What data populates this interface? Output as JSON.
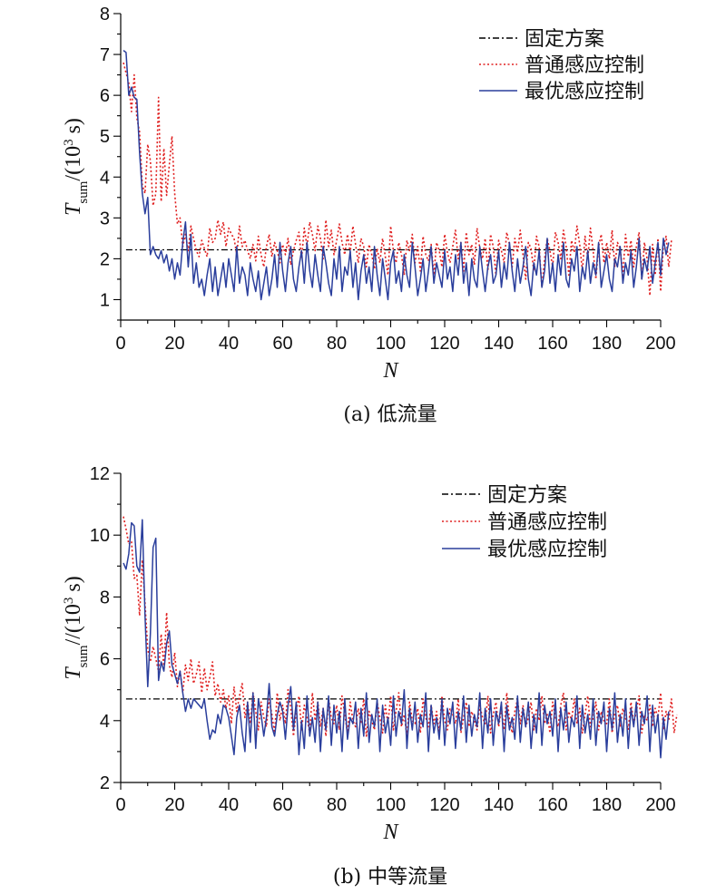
{
  "chart_data": [
    {
      "type": "line",
      "caption": "(a) 低流量",
      "xlabel": "N",
      "ylabel": {
        "main": "T",
        "sub": "sum",
        "rest": "/(10",
        "sup": "3",
        "end": " s)"
      },
      "xlim": [
        0,
        200
      ],
      "ylim": [
        0.5,
        8
      ],
      "xticks": [
        0,
        20,
        40,
        60,
        80,
        100,
        120,
        140,
        160,
        180,
        200
      ],
      "yticks": [
        1,
        2,
        3,
        4,
        5,
        6,
        7,
        8
      ],
      "grid": false,
      "legend_position": "top-right",
      "colors": {
        "fixed": "#000000",
        "normal": "#e02020",
        "optimal": "#2a3e9c"
      },
      "series": [
        {
          "name": "固定方案",
          "style": "dashdot",
          "points": [
            [
              2,
              2.22
            ],
            [
              200,
              2.22
            ]
          ]
        },
        {
          "name": "普通感应控制",
          "style": "dotted",
          "values": [
            6.8,
            6.55,
            6.3,
            5.6,
            6.5,
            5.45,
            5.1,
            3.8,
            3.6,
            4.8,
            4.4,
            3.3,
            3.6,
            5.95,
            3.4,
            4.7,
            3.55,
            4.3,
            5.0,
            3.6,
            2.85,
            3.0,
            2.3,
            2.6,
            2.2,
            2.8,
            2.5,
            2.2,
            2.05,
            2.45,
            2.25,
            2.05,
            2.75,
            2.4,
            2.5,
            2.95,
            2.6,
            2.9,
            2.3,
            2.75,
            2.6,
            2.5,
            2.1,
            2.8,
            2.3,
            2.45,
            2.2,
            2.0,
            2.35,
            1.95,
            2.55,
            2.1,
            1.8,
            2.3,
            2.6,
            2.05,
            2.4,
            2.2,
            1.9,
            2.35,
            2.1,
            2.5,
            1.85,
            2.2,
            2.45,
            2.65,
            2.0,
            2.75,
            2.3,
            2.9,
            2.6,
            2.2,
            2.8,
            2.5,
            2.0,
            2.95,
            2.3,
            2.7,
            2.1,
            2.45,
            2.85,
            2.4,
            2.1,
            2.6,
            2.15,
            2.8,
            2.35,
            1.9,
            2.5,
            2.3,
            1.8,
            2.35,
            2.1,
            1.75,
            2.25,
            1.9,
            2.5,
            2.05,
            1.6,
            2.8,
            2.2,
            1.9,
            2.4,
            2.1,
            1.6,
            2.45,
            2.2,
            2.6,
            1.9,
            2.3,
            1.7,
            2.55,
            2.1,
            1.95,
            2.35,
            1.6,
            2.4,
            2.2,
            1.8,
            2.6,
            2.15,
            1.9,
            2.3,
            2.7,
            2.0,
            2.4,
            1.7,
            2.65,
            2.1,
            2.35,
            1.85,
            2.75,
            2.25,
            2.0,
            2.5,
            1.7,
            2.6,
            2.3,
            1.6,
            2.45,
            2.2,
            1.9,
            2.65,
            2.35,
            1.8,
            2.5,
            2.15,
            2.7,
            2.1,
            1.5,
            2.4,
            2.25,
            1.7,
            2.55,
            2.3,
            1.3,
            2.0,
            2.5,
            2.2,
            1.8,
            2.65,
            2.4,
            2.0,
            2.7,
            2.3,
            1.6,
            2.45,
            2.15,
            2.8,
            2.35,
            1.7,
            2.55,
            2.0,
            2.75,
            2.2,
            1.5,
            2.3,
            2.6,
            1.9,
            2.4,
            2.0,
            2.7,
            1.8,
            2.4,
            2.25,
            1.6,
            2.6,
            2.05,
            2.45,
            1.8,
            2.3,
            2.65,
            1.5,
            2.4,
            2.0,
            1.1,
            2.35,
            1.6,
            2.5,
            1.2,
            2.3,
            2.55,
            1.8,
            2.45
          ]
        },
        {
          "name": "最优感应控制",
          "style": "solid",
          "values": [
            7.1,
            7.05,
            6.0,
            6.2,
            5.95,
            5.9,
            4.6,
            3.6,
            3.1,
            3.5,
            2.1,
            2.3,
            2.1,
            2.0,
            2.2,
            1.9,
            2.1,
            1.7,
            2.0,
            1.5,
            1.9,
            1.6,
            2.4,
            2.9,
            1.8,
            2.6,
            1.4,
            1.9,
            1.3,
            1.5,
            1.1,
            1.6,
            2.0,
            1.2,
            1.8,
            1.1,
            1.5,
            1.9,
            1.3,
            2.0,
            1.6,
            1.2,
            2.3,
            1.4,
            1.8,
            1.6,
            1.1,
            1.9,
            1.5,
            1.2,
            1.7,
            1.0,
            1.4,
            1.8,
            1.1,
            1.5,
            2.1,
            1.3,
            2.4,
            1.7,
            1.2,
            1.9,
            2.3,
            1.5,
            1.2,
            1.8,
            2.2,
            1.4,
            2.4,
            1.7,
            1.3,
            2.1,
            1.6,
            1.2,
            2.3,
            1.9,
            1.4,
            1.1,
            2.0,
            1.5,
            2.3,
            1.2,
            1.8,
            1.6,
            2.2,
            1.3,
            1.9,
            1.0,
            1.7,
            2.1,
            1.4,
            1.8,
            1.2,
            2.3,
            1.6,
            1.1,
            2.0,
            1.5,
            1.0,
            1.9,
            2.2,
            1.4,
            1.7,
            1.2,
            2.1,
            1.6,
            1.3,
            2.4,
            1.8,
            1.1,
            1.5,
            2.0,
            1.2,
            1.7,
            2.3,
            1.4,
            1.9,
            1.6,
            1.3,
            2.2,
            1.5,
            1.8,
            1.2,
            2.1,
            1.6,
            2.4,
            1.4,
            1.9,
            1.1,
            2.0,
            1.5,
            1.3,
            2.3,
            1.7,
            1.2,
            1.8,
            2.1,
            1.4,
            1.6,
            2.2,
            1.3,
            1.9,
            1.5,
            2.4,
            1.7,
            1.2,
            2.0,
            1.4,
            1.8,
            2.3,
            1.5,
            1.1,
            1.9,
            1.6,
            2.2,
            1.3,
            1.7,
            2.5,
            1.4,
            1.9,
            1.2,
            2.1,
            1.6,
            2.4,
            1.5,
            1.3,
            2.0,
            1.7,
            2.3,
            1.2,
            1.8,
            1.5,
            2.2,
            1.4,
            1.9,
            1.6,
            2.4,
            1.3,
            1.7,
            2.1,
            1.5,
            1.2,
            2.0,
            1.8,
            2.3,
            1.4,
            1.9,
            1.6,
            2.2,
            1.3,
            1.8,
            2.5,
            1.5,
            2.0,
            1.7,
            2.3,
            1.4,
            1.9,
            2.4,
            1.6,
            2.5,
            2.1,
            2.4
          ]
        }
      ]
    },
    {
      "type": "line",
      "caption": "(b) 中等流量",
      "xlabel": "N",
      "ylabel": {
        "main": "T",
        "sub": "sum",
        "rest": "//(10",
        "sup": "3",
        "end": " s)"
      },
      "xlim": [
        0,
        200
      ],
      "ylim": [
        2,
        12
      ],
      "xticks": [
        0,
        20,
        40,
        60,
        80,
        100,
        120,
        140,
        160,
        180,
        200
      ],
      "yticks": [
        2,
        4,
        6,
        8,
        10,
        12
      ],
      "grid": false,
      "legend_position": "top-right",
      "colors": {
        "fixed": "#000000",
        "normal": "#e02020",
        "optimal": "#2a3e9c"
      },
      "series": [
        {
          "name": "固定方案",
          "style": "dashdot",
          "points": [
            [
              2,
              4.7
            ],
            [
              200,
              4.7
            ]
          ]
        },
        {
          "name": "普通感应控制",
          "style": "dotted",
          "values": [
            10.6,
            10.2,
            9.7,
            9.8,
            8.6,
            8.7,
            7.4,
            9.2,
            7.8,
            6.3,
            5.9,
            6.4,
            6.0,
            5.6,
            6.8,
            5.7,
            7.5,
            5.8,
            5.4,
            6.2,
            5.1,
            5.6,
            4.9,
            5.8,
            5.3,
            6.0,
            5.2,
            5.5,
            5.9,
            4.9,
            5.7,
            5.0,
            5.4,
            5.9,
            4.8,
            5.2,
            4.6,
            5.0,
            4.4,
            4.8,
            3.9,
            5.1,
            4.3,
            4.8,
            5.2,
            4.1,
            4.6,
            3.9,
            4.9,
            4.3,
            3.7,
            4.6,
            4.1,
            3.8,
            4.7,
            4.2,
            3.6,
            4.9,
            4.0,
            4.5,
            3.9,
            5.0,
            4.4,
            3.5,
            4.3,
            4.8,
            3.7,
            4.5,
            4.1,
            3.6,
            4.9,
            4.0,
            4.6,
            3.8,
            4.4,
            3.5,
            4.7,
            4.1,
            3.9,
            4.5,
            3.7,
            4.8,
            4.2,
            3.6,
            4.6,
            4.0,
            3.8,
            4.4,
            3.9,
            4.7,
            3.5,
            4.3,
            4.0,
            3.7,
            4.6,
            4.1,
            3.6,
            4.5,
            3.9,
            4.8,
            3.7,
            4.3,
            4.9,
            3.8,
            4.2,
            3.5,
            4.6,
            4.0,
            3.9,
            4.4,
            3.6,
            4.7,
            4.1,
            3.8,
            4.5,
            3.9,
            4.3,
            3.6,
            4.8,
            4.0,
            3.7,
            4.4,
            4.2,
            3.9,
            4.7,
            3.6,
            4.1,
            4.6,
            3.8,
            4.3,
            4.0,
            3.7,
            4.5,
            4.1,
            3.9,
            4.8,
            3.6,
            4.2,
            4.6,
            3.8,
            4.4,
            3.7,
            4.9,
            4.0,
            3.6,
            4.3,
            4.7,
            3.9,
            4.5,
            3.8,
            4.1,
            4.6,
            3.7,
            4.4,
            4.0,
            4.8,
            3.9,
            4.2,
            3.6,
            4.6,
            4.1,
            3.8,
            4.5,
            4.9,
            3.7,
            4.3,
            4.0,
            4.7,
            3.9,
            4.4,
            3.6,
            4.2,
            4.8,
            3.8,
            4.1,
            4.6,
            3.7,
            4.3,
            4.0,
            3.9,
            4.7,
            3.6,
            4.2,
            4.5,
            3.8,
            4.4,
            4.1,
            3.7,
            4.6,
            3.9,
            4.3,
            4.8,
            3.6,
            4.2,
            4.0,
            4.5,
            3.8,
            4.4,
            4.1,
            4.9,
            3.7,
            4.3,
            4.0,
            4.7,
            3.6,
            4.2
          ]
        },
        {
          "name": "最优感应控制",
          "style": "solid",
          "values": [
            9.1,
            8.9,
            9.4,
            10.4,
            10.3,
            9.0,
            8.8,
            10.5,
            7.4,
            5.1,
            6.8,
            9.6,
            9.9,
            5.3,
            5.9,
            5.6,
            6.5,
            6.9,
            5.8,
            5.5,
            5.2,
            5.6,
            4.9,
            4.3,
            4.7,
            4.4,
            4.7,
            4.6,
            4.5,
            4.4,
            4.7,
            4.0,
            3.4,
            3.7,
            3.6,
            4.2,
            3.9,
            4.5,
            4.4,
            4.1,
            3.5,
            2.9,
            4.1,
            4.5,
            3.6,
            3.0,
            4.6,
            3.3,
            4.9,
            3.1,
            4.7,
            4.2,
            3.5,
            4.1,
            5.2,
            3.8,
            3.5,
            4.2,
            4.6,
            4.3,
            3.4,
            4.5,
            5.1,
            3.7,
            4.6,
            2.9,
            4.0,
            3.1,
            4.8,
            3.5,
            4.1,
            3.3,
            4.6,
            3.0,
            4.4,
            3.7,
            4.8,
            3.2,
            4.5,
            3.6,
            4.3,
            3.0,
            4.7,
            3.4,
            4.1,
            3.9,
            4.6,
            3.1,
            4.4,
            3.5,
            4.9,
            3.3,
            4.2,
            3.8,
            4.7,
            3.0,
            4.5,
            3.6,
            4.1,
            3.2,
            4.8,
            3.5,
            4.3,
            3.9,
            5.0,
            3.1,
            4.4,
            3.7,
            4.6,
            3.3,
            4.2,
            3.8,
            4.9,
            3.0,
            4.5,
            3.6,
            4.1,
            3.4,
            4.7,
            3.2,
            4.4,
            3.9,
            4.6,
            3.1,
            4.3,
            3.7,
            4.8,
            3.3,
            4.5,
            3.5,
            4.2,
            3.8,
            4.9,
            3.1,
            4.4,
            3.6,
            4.7,
            3.2,
            4.3,
            3.9,
            4.6,
            3.0,
            4.5,
            3.7,
            4.1,
            3.4,
            4.8,
            3.3,
            4.4,
            3.8,
            4.6,
            3.1,
            4.2,
            3.6,
            4.9,
            3.2,
            4.5,
            3.9,
            4.3,
            3.5,
            4.7,
            3.0,
            4.4,
            3.7,
            4.6,
            3.3,
            4.1,
            3.8,
            4.8,
            3.1,
            4.5,
            3.6,
            4.2,
            3.4,
            4.7,
            3.2,
            4.3,
            3.9,
            4.6,
            3.0,
            4.4,
            3.7,
            4.9,
            3.3,
            4.2,
            3.5,
            4.7,
            3.1,
            4.4,
            3.8,
            4.6,
            3.2,
            4.3,
            3.9,
            4.8,
            3.0,
            4.5,
            3.6,
            4.2,
            2.8,
            4.1,
            3.4,
            4.3
          ]
        }
      ]
    }
  ]
}
